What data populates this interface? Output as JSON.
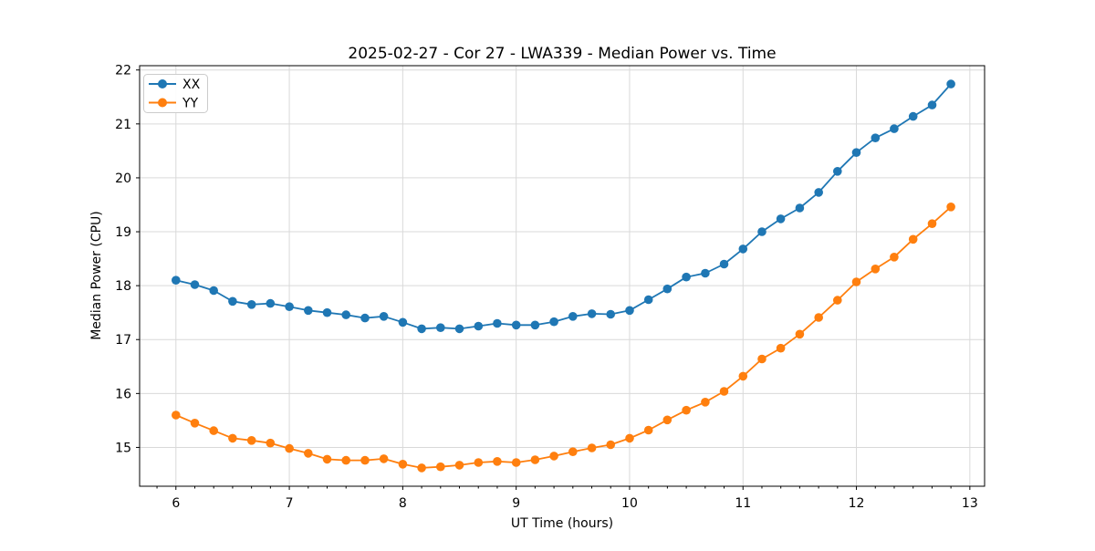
{
  "chart_data": {
    "type": "line",
    "title": "2025-02-27 - Cor 27 - LWA339 - Median Power vs. Time",
    "xlabel": "UT Time (hours)",
    "ylabel": "Median Power (CPU)",
    "xlim": [
      5.68,
      13.13
    ],
    "ylim": [
      14.28,
      22.08
    ],
    "xticks": [
      6,
      7,
      8,
      9,
      10,
      11,
      12,
      13
    ],
    "yticks": [
      15,
      16,
      17,
      18,
      19,
      20,
      21,
      22
    ],
    "x_minor_tick_step_hours": 0.1667,
    "grid": true,
    "legend_position": "upper left",
    "marker": "circle",
    "x": [
      6.0,
      6.167,
      6.333,
      6.5,
      6.667,
      6.833,
      7.0,
      7.167,
      7.333,
      7.5,
      7.667,
      7.833,
      8.0,
      8.167,
      8.333,
      8.5,
      8.667,
      8.833,
      9.0,
      9.167,
      9.333,
      9.5,
      9.667,
      9.833,
      10.0,
      10.167,
      10.333,
      10.5,
      10.667,
      10.833,
      11.0,
      11.167,
      11.333,
      11.5,
      11.667,
      11.833,
      12.0,
      12.167,
      12.333,
      12.5,
      12.667,
      12.833
    ],
    "series": [
      {
        "name": "XX",
        "color": "#1f77b4",
        "values": [
          18.1,
          18.02,
          17.91,
          17.71,
          17.65,
          17.67,
          17.61,
          17.54,
          17.5,
          17.46,
          17.4,
          17.43,
          17.32,
          17.2,
          17.22,
          17.2,
          17.25,
          17.3,
          17.27,
          17.27,
          17.33,
          17.43,
          17.48,
          17.47,
          17.54,
          17.74,
          17.94,
          18.16,
          18.23,
          18.4,
          18.68,
          19.0,
          19.24,
          19.44,
          19.73,
          20.12,
          20.47,
          20.74,
          20.91,
          21.14,
          21.35,
          21.74
        ]
      },
      {
        "name": "YY",
        "color": "#ff7f0e",
        "values": [
          15.6,
          15.45,
          15.31,
          15.17,
          15.13,
          15.08,
          14.98,
          14.89,
          14.78,
          14.76,
          14.76,
          14.79,
          14.69,
          14.62,
          14.64,
          14.67,
          14.72,
          14.74,
          14.72,
          14.77,
          14.84,
          14.92,
          14.99,
          15.05,
          15.17,
          15.32,
          15.51,
          15.69,
          15.84,
          16.04,
          16.32,
          16.64,
          16.84,
          17.1,
          17.41,
          17.73,
          18.07,
          18.31,
          18.53,
          18.86,
          19.15,
          19.46
        ]
      }
    ]
  }
}
